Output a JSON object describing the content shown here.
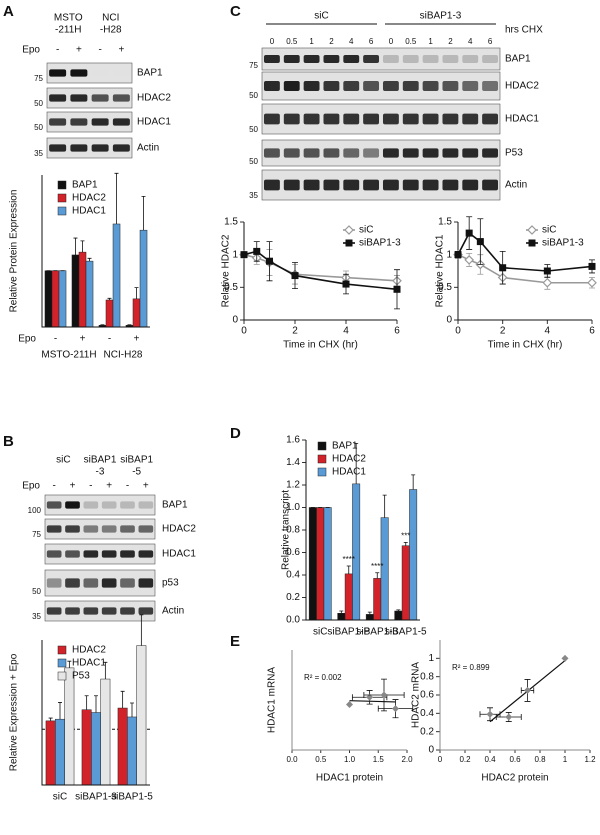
{
  "panel_labels": [
    "A",
    "B",
    "C",
    "D",
    "E"
  ],
  "blots": [
    {
      "headers": [
        [
          "MSTO",
          "-211H"
        ],
        [
          "NCI",
          "-H28"
        ]
      ],
      "treatment": "Epo",
      "lanes": [
        "-",
        "+",
        "-",
        "+"
      ],
      "rows": [
        {
          "label": "BAP1",
          "marker": 75
        },
        {
          "label": "HDAC2",
          "marker": 50
        },
        {
          "label": "HDAC1",
          "marker": 50
        },
        {
          "label": "Actin",
          "marker": 35
        }
      ]
    },
    {
      "headers": [
        [
          "siC"
        ],
        [
          "siBAP1",
          "-3"
        ],
        [
          "siBAP1",
          "-5"
        ]
      ],
      "treatment": "Epo",
      "lanes": [
        "-",
        "+",
        "-",
        "+",
        "-",
        "+"
      ],
      "rows": [
        {
          "label": "BAP1",
          "marker": 100
        },
        {
          "label": "HDAC2",
          "marker": 75
        },
        {
          "label": "HDAC1"
        },
        {
          "label": "p53",
          "marker": 50
        },
        {
          "label": "Actin",
          "marker": 35
        }
      ]
    },
    {
      "headers": [
        [
          "siC"
        ],
        [
          "siBAP1-3"
        ]
      ],
      "treatment": "hrs CHX",
      "lanes": [
        0,
        0.5,
        1,
        2,
        4,
        6,
        0,
        0.5,
        1,
        2,
        4,
        6
      ],
      "rows": [
        {
          "label": "BAP1",
          "marker": 75
        },
        {
          "label": "HDAC2",
          "marker": 50
        },
        {
          "label": "HDAC1",
          "marker": 50
        },
        {
          "label": "P53",
          "marker": 50
        },
        {
          "label": "Actin",
          "marker": 35
        }
      ]
    }
  ],
  "chart_data": [
    {
      "type": "bar",
      "y_label": "Relative Protein Expression",
      "x_label": "Epo",
      "categories": [
        "-",
        "+",
        "-",
        "+"
      ],
      "group_labels": [
        "MSTO-211H",
        "NCI-H28"
      ],
      "series": [
        {
          "name": "BAP1",
          "color": "#111111",
          "values": [
            1,
            1.28,
            0.03,
            0.03
          ],
          "errors": [
            0,
            0.3,
            0.01,
            0.01
          ]
        },
        {
          "name": "HDAC2",
          "color": "#d2232a",
          "values": [
            1,
            1.33,
            0.48,
            0.5
          ],
          "errors": [
            0,
            0.2,
            0.03,
            0.2
          ]
        },
        {
          "name": "HDAC1",
          "color": "#5b9bd5",
          "values": [
            1,
            1.17,
            1.83,
            1.72
          ],
          "errors": [
            0,
            0.05,
            0.9,
            0.6
          ]
        }
      ],
      "ylim": [
        0,
        2.7
      ]
    },
    {
      "type": "bar",
      "y_label": "Relative Expression + Epo",
      "categories": [
        "siC",
        "siBAP1-3",
        "siBAP1-5"
      ],
      "series": [
        {
          "name": "HDAC2",
          "color": "#d2232a",
          "values": [
            1.15,
            1.35,
            1.38
          ],
          "errors": [
            0.05,
            0.25,
            0.3
          ]
        },
        {
          "name": "HDAC1",
          "color": "#5b9bd5",
          "values": [
            1.18,
            1.3,
            1.22
          ],
          "errors": [
            0.3,
            0.3,
            0.25
          ]
        },
        {
          "name": "P53",
          "color": "#e6e6e6",
          "values": [
            2.1,
            1.9,
            2.5
          ],
          "errors": [
            0.12,
            0.3,
            0.55
          ]
        }
      ],
      "ylim": [
        0,
        2.6
      ],
      "reference_line": 1
    },
    {
      "type": "line",
      "y_label": "Relative HDAC2",
      "x_label": "Time in CHX (hr)",
      "x": [
        0,
        0.5,
        1,
        2,
        4,
        6
      ],
      "series": [
        {
          "name": "siC",
          "color": "#999999",
          "marker": "diamond",
          "values": [
            1,
            0.95,
            0.88,
            0.7,
            0.65,
            0.6
          ],
          "errors": [
            0.02,
            0.1,
            0.2,
            0.15,
            0.1,
            0.08
          ]
        },
        {
          "name": "siBAP1-3",
          "color": "#111111",
          "marker": "square",
          "values": [
            1,
            1.05,
            0.9,
            0.68,
            0.55,
            0.47
          ],
          "errors": [
            0.02,
            0.15,
            0.3,
            0.2,
            0.15,
            0.3
          ]
        }
      ],
      "xlim": [
        0,
        6
      ],
      "xticks": [
        0,
        2,
        4,
        6
      ],
      "ylim": [
        0,
        1.5
      ],
      "yticks": [
        0,
        0.5,
        1,
        1.5
      ]
    },
    {
      "type": "line",
      "y_label": "Relative HDAC1",
      "x_label": "Time in CHX (hr)",
      "x": [
        0,
        0.5,
        1,
        2,
        4,
        6
      ],
      "series": [
        {
          "name": "siC",
          "color": "#999999",
          "marker": "diamond",
          "values": [
            1,
            0.92,
            0.85,
            0.65,
            0.57,
            0.57
          ],
          "errors": [
            0.03,
            0.1,
            0.15,
            0.1,
            0.1,
            0.08
          ]
        },
        {
          "name": "siBAP1-3",
          "color": "#111111",
          "marker": "square",
          "values": [
            1,
            1.33,
            1.2,
            0.8,
            0.75,
            0.82
          ],
          "errors": [
            0.05,
            0.25,
            0.35,
            0.25,
            0.1,
            0.1
          ]
        }
      ],
      "xlim": [
        0,
        6
      ],
      "xticks": [
        0,
        2,
        4,
        6
      ],
      "ylim": [
        0,
        1.5
      ],
      "yticks": [
        0,
        0.5,
        1,
        1.5
      ]
    },
    {
      "type": "bar",
      "y_label": "Relative transcript",
      "categories": [
        "siC",
        "siBAP1-P",
        "siBAP1-3",
        "siBAP1-5"
      ],
      "series": [
        {
          "name": "BAP1",
          "color": "#111111",
          "values": [
            1,
            0.06,
            0.05,
            0.08
          ],
          "errors": [
            0,
            0.02,
            0.02,
            0.01
          ]
        },
        {
          "name": "HDAC2",
          "color": "#d2232a",
          "values": [
            1,
            0.41,
            0.37,
            0.66
          ],
          "errors": [
            0,
            0.07,
            0.05,
            0.03
          ]
        },
        {
          "name": "HDAC1",
          "color": "#5b9bd5",
          "values": [
            1,
            1.21,
            0.91,
            1.16
          ],
          "errors": [
            0,
            0.36,
            0.2,
            0.13
          ]
        }
      ],
      "annotations": [
        null,
        "****",
        "****",
        "***"
      ],
      "ylim": [
        0,
        1.6
      ],
      "yticks": [
        {
          "value": 0,
          "label": "0.0"
        },
        {
          "value": 0.2,
          "label": "0.2"
        },
        {
          "value": 0.4,
          "label": "0.4"
        },
        {
          "value": 0.6,
          "label": "0.6"
        },
        {
          "value": 0.8,
          "label": "0.8"
        },
        {
          "value": 1,
          "label": "1.0"
        },
        {
          "value": 1.2,
          "label": "1.2"
        },
        {
          "value": 1.4,
          "label": "1.4"
        },
        {
          "value": 1.6,
          "label": "1.6"
        }
      ]
    },
    {
      "type": "scatter",
      "x_label": "HDAC1 protein",
      "y_label": "HDAC1 mRNA",
      "annotation": "R² = 0.002",
      "x": [
        1.0,
        1.35,
        1.6,
        1.8
      ],
      "values": [
        1.0,
        1.16,
        1.21,
        0.91
      ],
      "x_errors": [
        0,
        0.3,
        0.35,
        0.3
      ],
      "y_errors": [
        0,
        0.15,
        0.35,
        0.2
      ],
      "color": "#888888",
      "xlim": [
        0,
        2
      ],
      "xticks": [
        {
          "value": 0,
          "label": "0.0"
        },
        {
          "value": 0.5,
          "label": "0.5"
        },
        {
          "value": 1,
          "label": "1.0"
        },
        {
          "value": 1.5,
          "label": "1.5"
        },
        {
          "value": 2,
          "label": "2.0"
        }
      ],
      "ylim": [
        0,
        2.2
      ],
      "trendline": true
    },
    {
      "type": "scatter",
      "x_label": "HDAC2 protein",
      "y_label": "HDAC2 mRNA",
      "annotation": "R² = 0.899",
      "x": [
        1.0,
        0.7,
        0.4,
        0.55
      ],
      "values": [
        1.0,
        0.65,
        0.39,
        0.36
      ],
      "x_errors": [
        0,
        0.05,
        0.08,
        0.1
      ],
      "y_errors": [
        0,
        0.12,
        0.07,
        0.05
      ],
      "color": "#888888",
      "xlim": [
        0,
        1.2
      ],
      "xticks": [
        0,
        0.2,
        0.4,
        0.6,
        0.8,
        1,
        1.2
      ],
      "ylim": [
        0,
        1.2
      ],
      "yticks": [
        0,
        0.2,
        0.4,
        0.6,
        0.8,
        1
      ],
      "trendline": true
    }
  ]
}
